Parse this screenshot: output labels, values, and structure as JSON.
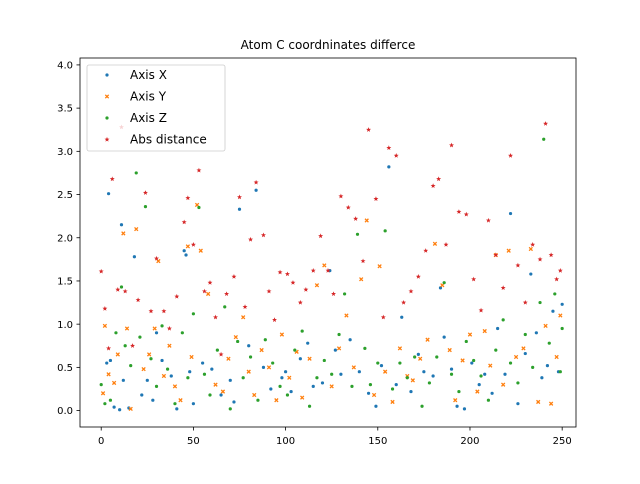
{
  "chart_data": {
    "type": "scatter",
    "title": "Atom C coordninates differce",
    "xlabel": "",
    "ylabel": "",
    "xlim": [
      -11.5,
      257.5
    ],
    "ylim": [
      -0.19,
      4.08
    ],
    "xticks": [
      0,
      50,
      100,
      150,
      200,
      250
    ],
    "yticks": [
      0.0,
      0.5,
      1.0,
      1.5,
      2.0,
      2.5,
      3.0,
      3.5,
      4.0
    ],
    "grid": false,
    "legend_position": "upper-left",
    "series": [
      {
        "name": "Axis X",
        "color": "#1f77b4",
        "marker": "dot",
        "points": [
          [
            3,
            0.55
          ],
          [
            4,
            2.51
          ],
          [
            5,
            0.58
          ],
          [
            7,
            0.04
          ],
          [
            10,
            0.01
          ],
          [
            11,
            2.15
          ],
          [
            12,
            0.35
          ],
          [
            15,
            0.03
          ],
          [
            18,
            1.78
          ],
          [
            22,
            0.18
          ],
          [
            25,
            0.35
          ],
          [
            28,
            0.12
          ],
          [
            30,
            0.9
          ],
          [
            33,
            0.58
          ],
          [
            38,
            0.4
          ],
          [
            41,
            0.02
          ],
          [
            45,
            1.85
          ],
          [
            46,
            1.8
          ],
          [
            48,
            0.45
          ],
          [
            50,
            0.08
          ],
          [
            55,
            0.55
          ],
          [
            60,
            0.48
          ],
          [
            65,
            0.18
          ],
          [
            70,
            0.35
          ],
          [
            72,
            0.1
          ],
          [
            75,
            2.33
          ],
          [
            80,
            0.75
          ],
          [
            84,
            2.55
          ],
          [
            88,
            0.5
          ],
          [
            92,
            0.25
          ],
          [
            98,
            0.38
          ],
          [
            100,
            0.45
          ],
          [
            103,
            0.22
          ],
          [
            108,
            0.6
          ],
          [
            112,
            0.78
          ],
          [
            115,
            0.28
          ],
          [
            120,
            0.32
          ],
          [
            124,
            1.62
          ],
          [
            127,
            0.7
          ],
          [
            130,
            0.42
          ],
          [
            135,
            0.82
          ],
          [
            140,
            0.45
          ],
          [
            145,
            0.2
          ],
          [
            149,
            0.05
          ],
          [
            152,
            0.52
          ],
          [
            156,
            2.82
          ],
          [
            160,
            0.3
          ],
          [
            163,
            1.08
          ],
          [
            168,
            0.22
          ],
          [
            172,
            0.65
          ],
          [
            175,
            0.45
          ],
          [
            180,
            0.4
          ],
          [
            184,
            1.42
          ],
          [
            186,
            0.85
          ],
          [
            190,
            0.48
          ],
          [
            193,
            0.05
          ],
          [
            197,
            0.02
          ],
          [
            201,
            0.55
          ],
          [
            205,
            0.3
          ],
          [
            208,
            0.42
          ],
          [
            212,
            0.2
          ],
          [
            215,
            0.95
          ],
          [
            219,
            0.42
          ],
          [
            222,
            2.28
          ],
          [
            226,
            0.08
          ],
          [
            230,
            0.66
          ],
          [
            233,
            1.58
          ],
          [
            236,
            0.9
          ],
          [
            239,
            0.38
          ],
          [
            242,
            0.52
          ],
          [
            245,
            1.15
          ],
          [
            248,
            0.45
          ],
          [
            250,
            1.23
          ]
        ]
      },
      {
        "name": "Axis Y",
        "color": "#ff7f0e",
        "marker": "x",
        "points": [
          [
            1,
            0.2
          ],
          [
            2,
            0.98
          ],
          [
            4,
            0.42
          ],
          [
            7,
            0.32
          ],
          [
            9,
            0.65
          ],
          [
            12,
            2.05
          ],
          [
            14,
            0.95
          ],
          [
            16,
            0.02
          ],
          [
            19,
            2.1
          ],
          [
            23,
            0.48
          ],
          [
            26,
            0.65
          ],
          [
            29,
            0.95
          ],
          [
            31,
            1.73
          ],
          [
            34,
            0.4
          ],
          [
            37,
            0.75
          ],
          [
            40,
            0.28
          ],
          [
            43,
            0.12
          ],
          [
            47,
            1.9
          ],
          [
            49,
            0.62
          ],
          [
            52,
            2.38
          ],
          [
            54,
            1.85
          ],
          [
            58,
            1.35
          ],
          [
            62,
            0.3
          ],
          [
            66,
            0.22
          ],
          [
            69,
            0.6
          ],
          [
            73,
            0.85
          ],
          [
            77,
            1.08
          ],
          [
            80,
            0.45
          ],
          [
            83,
            0.18
          ],
          [
            87,
            0.7
          ],
          [
            91,
            0.5
          ],
          [
            95,
            0.12
          ],
          [
            98,
            0.88
          ],
          [
            102,
            0.38
          ],
          [
            106,
            0.68
          ],
          [
            109,
            0.15
          ],
          [
            113,
            0.6
          ],
          [
            117,
            1.45
          ],
          [
            121,
            1.68
          ],
          [
            125,
            0.28
          ],
          [
            129,
            0.72
          ],
          [
            133,
            1.1
          ],
          [
            137,
            0.5
          ],
          [
            141,
            1.52
          ],
          [
            144,
            2.2
          ],
          [
            148,
            0.18
          ],
          [
            151,
            1.67
          ],
          [
            154,
            0.45
          ],
          [
            158,
            0.1
          ],
          [
            162,
            0.72
          ],
          [
            166,
            0.4
          ],
          [
            169,
            0.35
          ],
          [
            173,
            0.6
          ],
          [
            177,
            0.82
          ],
          [
            181,
            1.93
          ],
          [
            185,
            1.45
          ],
          [
            189,
            0.7
          ],
          [
            192,
            0.12
          ],
          [
            196,
            0.58
          ],
          [
            200,
            0.88
          ],
          [
            204,
            0.22
          ],
          [
            208,
            0.92
          ],
          [
            211,
            0.52
          ],
          [
            214,
            1.8
          ],
          [
            218,
            0.3
          ],
          [
            221,
            1.85
          ],
          [
            225,
            0.62
          ],
          [
            229,
            0.72
          ],
          [
            233,
            1.87
          ],
          [
            237,
            0.1
          ],
          [
            241,
            0.98
          ],
          [
            244,
            0.08
          ],
          [
            247,
            0.62
          ],
          [
            249,
            1.1
          ]
        ]
      },
      {
        "name": "Axis Z",
        "color": "#2ca02c",
        "marker": "dot",
        "points": [
          [
            0,
            0.3
          ],
          [
            2,
            0.08
          ],
          [
            5,
            0.12
          ],
          [
            8,
            0.9
          ],
          [
            11,
            1.43
          ],
          [
            13,
            0.75
          ],
          [
            16,
            0.52
          ],
          [
            19,
            2.75
          ],
          [
            21,
            0.85
          ],
          [
            24,
            2.36
          ],
          [
            27,
            0.6
          ],
          [
            30,
            0.28
          ],
          [
            33,
            0.98
          ],
          [
            36,
            0.48
          ],
          [
            40,
            0.08
          ],
          [
            44,
            0.9
          ],
          [
            47,
            0.38
          ],
          [
            50,
            1.12
          ],
          [
            53,
            2.35
          ],
          [
            56,
            0.42
          ],
          [
            59,
            0.18
          ],
          [
            63,
            0.7
          ],
          [
            67,
            1.2
          ],
          [
            70,
            0.02
          ],
          [
            74,
            0.8
          ],
          [
            77,
            0.38
          ],
          [
            81,
            0.62
          ],
          [
            85,
            0.12
          ],
          [
            89,
            0.82
          ],
          [
            93,
            0.55
          ],
          [
            97,
            0.28
          ],
          [
            101,
            0.18
          ],
          [
            105,
            0.7
          ],
          [
            109,
            0.92
          ],
          [
            113,
            0.05
          ],
          [
            117,
            0.38
          ],
          [
            121,
            0.58
          ],
          [
            125,
            0.42
          ],
          [
            129,
            0.88
          ],
          [
            132,
            1.35
          ],
          [
            136,
            0.28
          ],
          [
            139,
            2.04
          ],
          [
            143,
            0.72
          ],
          [
            146,
            0.3
          ],
          [
            150,
            0.55
          ],
          [
            154,
            2.08
          ],
          [
            158,
            0.25
          ],
          [
            162,
            0.55
          ],
          [
            166,
            0.38
          ],
          [
            170,
            0.62
          ],
          [
            174,
            0.05
          ],
          [
            178,
            0.32
          ],
          [
            182,
            0.62
          ],
          [
            186,
            1.48
          ],
          [
            190,
            0.42
          ],
          [
            194,
            0.22
          ],
          [
            198,
            0.8
          ],
          [
            202,
            0.58
          ],
          [
            206,
            0.4
          ],
          [
            210,
            0.12
          ],
          [
            214,
            0.7
          ],
          [
            218,
            1.05
          ],
          [
            222,
            0.55
          ],
          [
            226,
            0.32
          ],
          [
            230,
            0.88
          ],
          [
            234,
            0.5
          ],
          [
            238,
            1.25
          ],
          [
            240,
            3.14
          ],
          [
            243,
            0.78
          ],
          [
            246,
            1.35
          ],
          [
            249,
            0.45
          ],
          [
            250,
            0.95
          ]
        ]
      },
      {
        "name": "Abs distance",
        "color": "#d62728",
        "marker": "star",
        "points": [
          [
            0,
            1.61
          ],
          [
            2,
            1.18
          ],
          [
            4,
            0.72
          ],
          [
            6,
            2.68
          ],
          [
            9,
            1.4
          ],
          [
            11,
            3.28
          ],
          [
            13,
            1.38
          ],
          [
            17,
            0.75
          ],
          [
            20,
            1.28
          ],
          [
            24,
            2.52
          ],
          [
            27,
            1.15
          ],
          [
            30,
            1.76
          ],
          [
            34,
            1.15
          ],
          [
            37,
            0.95
          ],
          [
            41,
            1.32
          ],
          [
            45,
            2.18
          ],
          [
            47,
            2.46
          ],
          [
            50,
            1.92
          ],
          [
            53,
            2.78
          ],
          [
            56,
            1.38
          ],
          [
            59,
            1.48
          ],
          [
            62,
            1.08
          ],
          [
            65,
            0.65
          ],
          [
            68,
            1.35
          ],
          [
            72,
            1.55
          ],
          [
            75,
            2.47
          ],
          [
            78,
            1.2
          ],
          [
            81,
            1.98
          ],
          [
            84,
            2.64
          ],
          [
            88,
            2.03
          ],
          [
            91,
            1.38
          ],
          [
            94,
            1.05
          ],
          [
            97,
            1.6
          ],
          [
            101,
            1.58
          ],
          [
            104,
            1.48
          ],
          [
            108,
            1.25
          ],
          [
            111,
            1.4
          ],
          [
            115,
            1.62
          ],
          [
            119,
            2.02
          ],
          [
            123,
            1.62
          ],
          [
            126,
            1.35
          ],
          [
            130,
            2.48
          ],
          [
            134,
            2.35
          ],
          [
            138,
            2.22
          ],
          [
            142,
            1.73
          ],
          [
            145,
            3.25
          ],
          [
            149,
            2.45
          ],
          [
            153,
            1.08
          ],
          [
            156,
            3.04
          ],
          [
            160,
            2.95
          ],
          [
            164,
            1.25
          ],
          [
            168,
            1.38
          ],
          [
            172,
            1.55
          ],
          [
            176,
            1.85
          ],
          [
            180,
            2.6
          ],
          [
            183,
            2.68
          ],
          [
            187,
            1.92
          ],
          [
            190,
            3.07
          ],
          [
            194,
            2.3
          ],
          [
            198,
            2.27
          ],
          [
            202,
            1.52
          ],
          [
            206,
            1.16
          ],
          [
            210,
            2.2
          ],
          [
            214,
            1.8
          ],
          [
            218,
            1.42
          ],
          [
            222,
            2.95
          ],
          [
            226,
            1.68
          ],
          [
            230,
            1.25
          ],
          [
            234,
            1.92
          ],
          [
            238,
            1.75
          ],
          [
            241,
            3.32
          ],
          [
            244,
            1.8
          ],
          [
            247,
            1.52
          ],
          [
            249,
            1.62
          ]
        ]
      }
    ]
  }
}
